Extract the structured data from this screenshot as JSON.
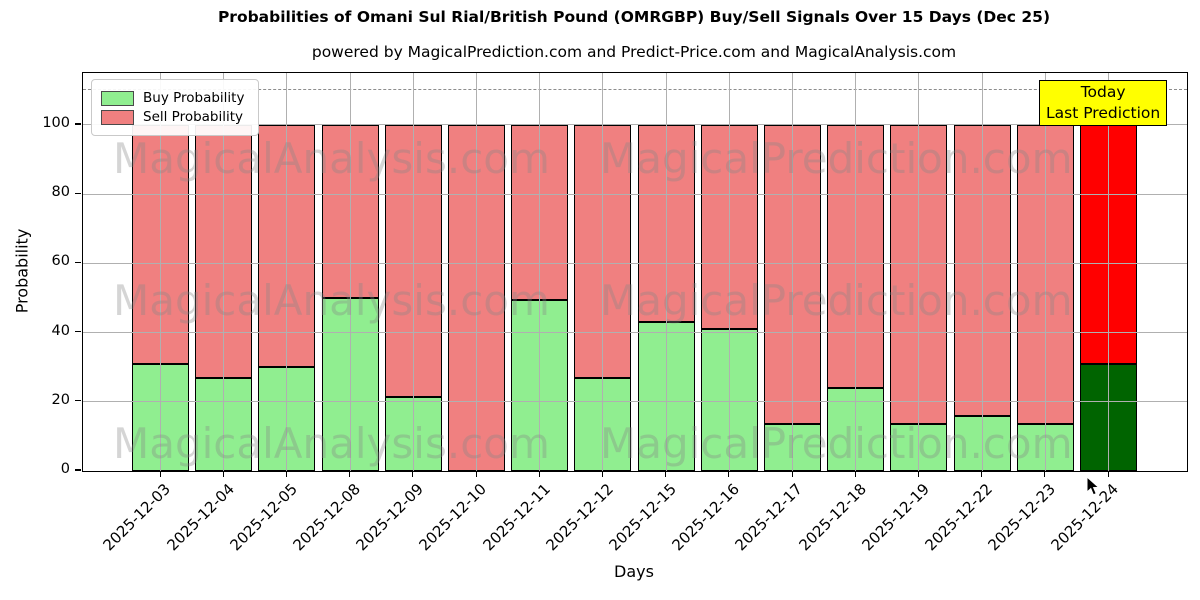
{
  "chart_data": {
    "type": "bar",
    "stacked": true,
    "title": "Probabilities of Omani Sul Rial/British Pound (OMRGBP) Buy/Sell Signals Over 15 Days (Dec 25)",
    "subtitle": "powered by MagicalPrediction.com and Predict-Price.com and MagicalAnalysis.com",
    "xlabel": "Days",
    "ylabel": "Probability",
    "categories": [
      "2025-12-03",
      "2025-12-04",
      "2025-12-05",
      "2025-12-08",
      "2025-12-09",
      "2025-12-10",
      "2025-12-11",
      "2025-12-12",
      "2025-12-15",
      "2025-12-16",
      "2025-12-17",
      "2025-12-18",
      "2025-12-19",
      "2025-12-22",
      "2025-12-23",
      "2025-12-24"
    ],
    "series": [
      {
        "name": "Buy Probability",
        "values": [
          31,
          27,
          30,
          50,
          21.5,
          0,
          49.5,
          27,
          43,
          41,
          13.5,
          24,
          13.5,
          16,
          13.5,
          31
        ]
      },
      {
        "name": "Sell Probability",
        "values": [
          69,
          73,
          70,
          50,
          78.5,
          100,
          50.5,
          73,
          57,
          59,
          86.5,
          76,
          86.5,
          84,
          86.5,
          69
        ]
      }
    ],
    "today_index": 15,
    "yticks": [
      0,
      20,
      40,
      60,
      80,
      100
    ],
    "ylim": [
      0,
      115
    ],
    "dashed_line_y": 110,
    "grid": true,
    "legend_position": "upper-left",
    "colors": {
      "buy": "#90ee90",
      "sell": "#f08080",
      "today_buy": "#006400",
      "today_sell": "#ff0000",
      "bar_edge": "#000000",
      "grid": "#b0b0b0",
      "dashed_line": "#8c8c8c",
      "today_box_bg": "#ffff00",
      "today_box_border": "#000000"
    }
  },
  "annotations": {
    "today_box": {
      "line1": "Today",
      "line2": "Last Prediction"
    }
  },
  "watermarks": {
    "texts": [
      "MagicalAnalysis.com",
      "MagicalPrediction.com"
    ]
  }
}
